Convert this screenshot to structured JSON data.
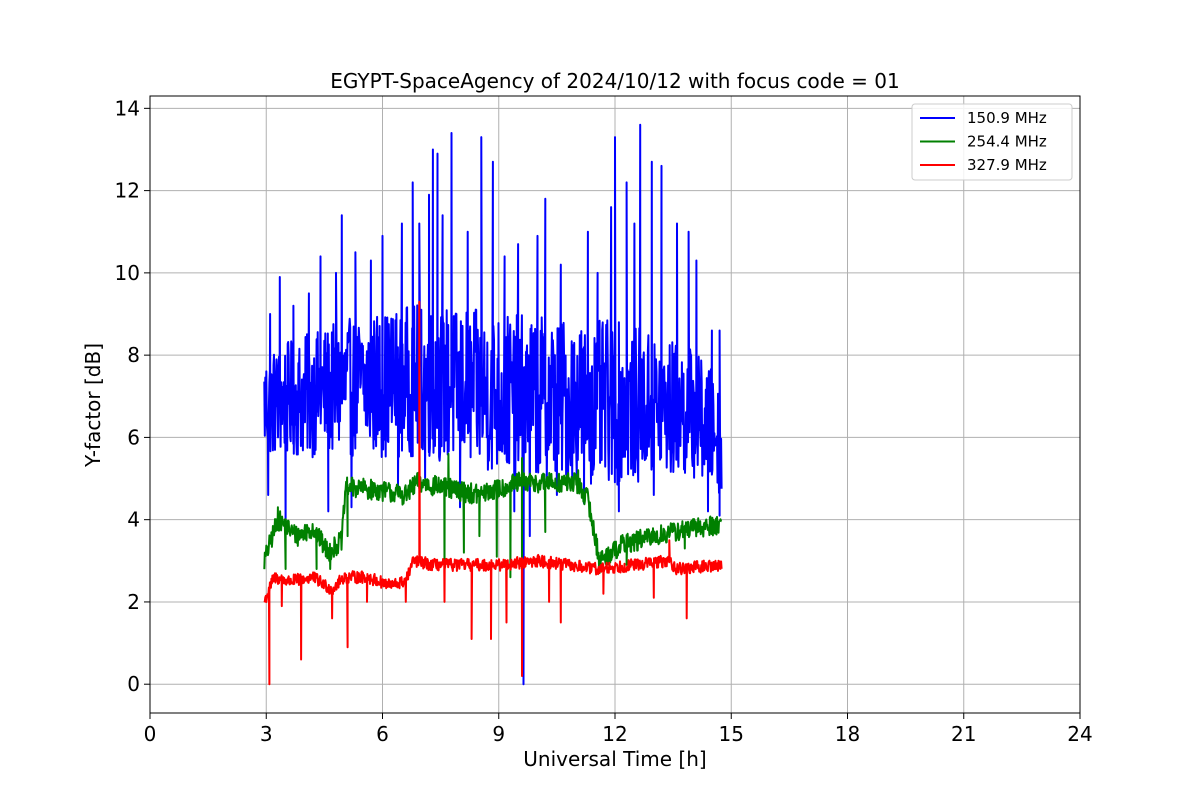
{
  "chart_data": {
    "type": "line",
    "title": "EGYPT-SpaceAgency of 2024/10/12 with focus code = 01",
    "xlabel": "Universal Time [h]",
    "ylabel": "Y-factor [dB]",
    "xlim": [
      0,
      24
    ],
    "ylim": [
      -0.7,
      14.3
    ],
    "xticks": [
      0,
      3,
      6,
      9,
      12,
      15,
      18,
      21,
      24
    ],
    "yticks": [
      0,
      2,
      4,
      6,
      8,
      10,
      12,
      14
    ],
    "grid": true,
    "legend_position": "top-right",
    "series": [
      {
        "name": "150.9 MHz",
        "color": "#0000ff",
        "baseline": [
          [
            2.95,
            6.8
          ],
          [
            4,
            7.0
          ],
          [
            5,
            7.2
          ],
          [
            6.9,
            7.4
          ],
          [
            8,
            7.2
          ],
          [
            9.5,
            7.0
          ],
          [
            11,
            6.9
          ],
          [
            12.5,
            6.8
          ],
          [
            14,
            6.6
          ],
          [
            14.75,
            6.0
          ]
        ],
        "amplitude": [
          [
            2.95,
            1.3
          ],
          [
            4,
            1.5
          ],
          [
            6,
            1.8
          ],
          [
            9,
            2.0
          ],
          [
            12,
            2.0
          ],
          [
            14,
            1.6
          ],
          [
            14.75,
            1.4
          ]
        ],
        "spikes": [
          [
            3.1,
            9.0
          ],
          [
            3.35,
            9.9
          ],
          [
            3.7,
            9.2
          ],
          [
            4.1,
            9.5
          ],
          [
            4.4,
            10.4
          ],
          [
            4.8,
            10.0
          ],
          [
            4.95,
            11.4
          ],
          [
            5.3,
            10.5
          ],
          [
            5.7,
            10.3
          ],
          [
            6.0,
            10.9
          ],
          [
            6.5,
            11.2
          ],
          [
            6.78,
            12.2
          ],
          [
            6.95,
            11.2
          ],
          [
            7.2,
            11.9
          ],
          [
            7.3,
            13.0
          ],
          [
            7.42,
            12.9
          ],
          [
            7.55,
            11.4
          ],
          [
            7.78,
            13.4
          ],
          [
            8.2,
            11.0
          ],
          [
            8.55,
            13.3
          ],
          [
            8.85,
            12.7
          ],
          [
            9.15,
            10.4
          ],
          [
            9.5,
            10.7
          ],
          [
            10.0,
            10.9
          ],
          [
            10.2,
            11.8
          ],
          [
            10.6,
            10.2
          ],
          [
            11.3,
            11.0
          ],
          [
            11.55,
            10.0
          ],
          [
            11.9,
            11.6
          ],
          [
            12.0,
            13.3
          ],
          [
            12.3,
            12.2
          ],
          [
            12.5,
            11.2
          ],
          [
            12.65,
            13.6
          ],
          [
            12.95,
            12.7
          ],
          [
            13.2,
            12.6
          ],
          [
            13.6,
            11.2
          ],
          [
            13.9,
            11.0
          ],
          [
            14.1,
            10.3
          ],
          [
            14.5,
            8.6
          ],
          [
            14.7,
            8.6
          ]
        ],
        "dips": [
          [
            3.05,
            4.6
          ],
          [
            3.5,
            3.8
          ],
          [
            4.6,
            4.2
          ],
          [
            5.2,
            4.3
          ],
          [
            6.4,
            4.8
          ],
          [
            7.1,
            5.0
          ],
          [
            8.0,
            4.3
          ],
          [
            9.4,
            4.2
          ],
          [
            9.8,
            3.6
          ],
          [
            10.5,
            4.6
          ],
          [
            11.2,
            4.4
          ],
          [
            12.1,
            4.2
          ],
          [
            13.0,
            4.6
          ],
          [
            14.4,
            4.2
          ],
          [
            14.7,
            4.1
          ]
        ],
        "features": [
          [
            9.62,
            0.4
          ],
          [
            9.64,
            0.0
          ]
        ]
      },
      {
        "name": "254.4 MHz",
        "color": "#008000",
        "baseline": [
          [
            2.95,
            3.0
          ],
          [
            3.3,
            4.0
          ],
          [
            3.8,
            3.6
          ],
          [
            4.2,
            3.8
          ],
          [
            4.6,
            3.2
          ],
          [
            4.95,
            3.5
          ],
          [
            5.05,
            4.8
          ],
          [
            6.0,
            4.7
          ],
          [
            6.6,
            4.6
          ],
          [
            6.9,
            4.9
          ],
          [
            7.5,
            4.8
          ],
          [
            8.5,
            4.6
          ],
          [
            9.5,
            4.9
          ],
          [
            11.0,
            4.9
          ],
          [
            11.3,
            4.5
          ],
          [
            11.6,
            3.0
          ],
          [
            12.2,
            3.4
          ],
          [
            13.5,
            3.7
          ],
          [
            14.75,
            3.9
          ]
        ],
        "amplitude": [
          [
            2.95,
            0.25
          ],
          [
            14.75,
            0.25
          ]
        ],
        "spikes": [
          [
            3.3,
            4.3
          ],
          [
            7.7,
            5.6
          ],
          [
            9.6,
            5.5
          ],
          [
            11.05,
            5.2
          ]
        ],
        "dips": [
          [
            3.5,
            2.8
          ],
          [
            4.3,
            2.8
          ],
          [
            4.65,
            2.8
          ],
          [
            5.1,
            3.6
          ],
          [
            7.6,
            2.8
          ],
          [
            8.1,
            3.2
          ],
          [
            8.5,
            3.6
          ],
          [
            8.95,
            3.1
          ],
          [
            9.3,
            2.6
          ],
          [
            9.6,
            2.5
          ],
          [
            10.2,
            3.7
          ],
          [
            11.6,
            2.7
          ],
          [
            12.3,
            2.9
          ],
          [
            13.8,
            3.3
          ]
        ],
        "features": []
      },
      {
        "name": "327.9 MHz",
        "color": "#ff0000",
        "baseline": [
          [
            2.95,
            2.0
          ],
          [
            3.2,
            2.6
          ],
          [
            3.6,
            2.5
          ],
          [
            4.2,
            2.6
          ],
          [
            4.7,
            2.3
          ],
          [
            5.0,
            2.6
          ],
          [
            5.6,
            2.6
          ],
          [
            6.2,
            2.4
          ],
          [
            6.6,
            2.5
          ],
          [
            6.8,
            3.0
          ],
          [
            7.3,
            2.9
          ],
          [
            9.0,
            2.9
          ],
          [
            10.0,
            3.0
          ],
          [
            11.5,
            2.8
          ],
          [
            12.5,
            2.9
          ],
          [
            13.4,
            3.0
          ],
          [
            13.6,
            2.8
          ],
          [
            14.75,
            2.9
          ]
        ],
        "amplitude": [
          [
            2.95,
            0.15
          ],
          [
            14.75,
            0.15
          ]
        ],
        "spikes": [
          [
            6.95,
            9.3
          ],
          [
            13.4,
            3.5
          ]
        ],
        "dips": [
          [
            3.08,
            0.0
          ],
          [
            3.4,
            1.9
          ],
          [
            3.9,
            0.6
          ],
          [
            4.7,
            1.6
          ],
          [
            5.1,
            0.9
          ],
          [
            5.6,
            2.0
          ],
          [
            6.6,
            2.0
          ],
          [
            7.6,
            2.0
          ],
          [
            8.3,
            1.1
          ],
          [
            8.8,
            1.1
          ],
          [
            9.2,
            1.5
          ],
          [
            9.6,
            0.2
          ],
          [
            10.3,
            2.0
          ],
          [
            10.6,
            1.5
          ],
          [
            11.7,
            2.2
          ],
          [
            13.0,
            2.1
          ],
          [
            13.85,
            1.6
          ]
        ],
        "features": []
      }
    ]
  }
}
